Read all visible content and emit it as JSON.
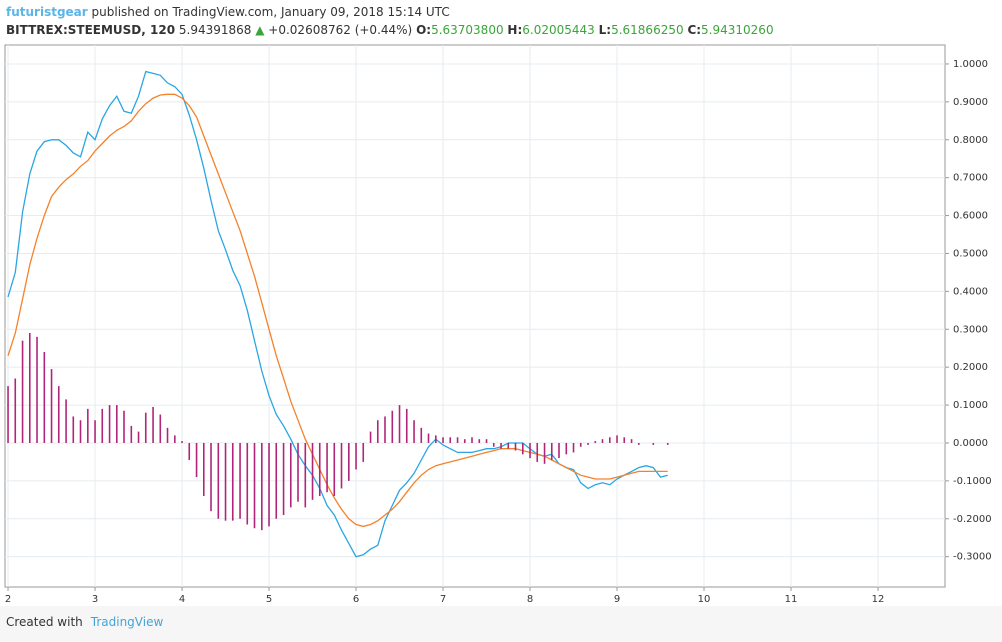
{
  "header": {
    "author": "futuristgear",
    "published": "published on TradingView.com, January 09, 2018 15:14 UTC",
    "symbol": "BITTREX:STEEMUSD, 120",
    "last": "5.94391868",
    "arrow": "▲",
    "change": "+0.02608762 (+0.44%)",
    "o_label": "O:",
    "open": "5.63703800",
    "h_label": "H:",
    "high": "6.02005443",
    "l_label": "L:",
    "low": "5.61866250",
    "c_label": "C:",
    "close": "5.94310260"
  },
  "footer": {
    "created": "Created with",
    "brand": "TradingView"
  },
  "chart_data": {
    "type": "macd",
    "grid": true,
    "x": [
      2,
      2.083,
      2.167,
      2.25,
      2.333,
      2.417,
      2.5,
      2.583,
      2.667,
      2.75,
      2.833,
      2.917,
      3,
      3.083,
      3.167,
      3.25,
      3.333,
      3.417,
      3.5,
      3.583,
      3.667,
      3.75,
      3.833,
      3.917,
      4,
      4.083,
      4.167,
      4.25,
      4.333,
      4.417,
      4.5,
      4.583,
      4.667,
      4.75,
      4.833,
      4.917,
      5,
      5.083,
      5.167,
      5.25,
      5.333,
      5.417,
      5.5,
      5.583,
      5.667,
      5.75,
      5.833,
      5.917,
      6,
      6.083,
      6.167,
      6.25,
      6.333,
      6.417,
      6.5,
      6.583,
      6.667,
      6.75,
      6.833,
      6.917,
      7,
      7.083,
      7.167,
      7.25,
      7.333,
      7.417,
      7.5,
      7.583,
      7.667,
      7.75,
      7.833,
      7.917,
      8,
      8.083,
      8.167,
      8.25,
      8.333,
      8.417,
      8.5,
      8.583,
      8.667,
      8.75,
      8.833,
      8.917,
      9,
      9.083,
      9.167,
      9.25,
      9.333,
      9.417,
      9.5,
      9.583
    ],
    "xlim": [
      1.965,
      12.77
    ],
    "xticks": [
      2,
      3,
      4,
      5,
      6,
      7,
      8,
      9,
      10,
      11,
      12
    ],
    "ylim": [
      -0.38,
      1.05
    ],
    "yticks": [
      {
        "value": 1.0,
        "label": "1.0000"
      },
      {
        "value": 0.9,
        "label": "0.9000"
      },
      {
        "value": 0.8,
        "label": "0.8000"
      },
      {
        "value": 0.7,
        "label": "0.7000"
      },
      {
        "value": 0.6,
        "label": "0.6000"
      },
      {
        "value": 0.5,
        "label": "0.5000"
      },
      {
        "value": 0.4,
        "label": "0.4000"
      },
      {
        "value": 0.3,
        "label": "0.3000"
      },
      {
        "value": 0.2,
        "label": "0.2000"
      },
      {
        "value": 0.1,
        "label": "0.1000"
      },
      {
        "value": 0,
        "label": "0.0000"
      },
      {
        "value": -0.1,
        "label": "-0.1000"
      },
      {
        "value": -0.2,
        "label": "-0.2000"
      },
      {
        "value": -0.3,
        "label": "-0.3000"
      }
    ],
    "series": [
      {
        "kind": "line",
        "color": "#29a6e2",
        "values": [
          0.385,
          0.45,
          0.61,
          0.71,
          0.77,
          0.795,
          0.8,
          0.8,
          0.785,
          0.765,
          0.755,
          0.82,
          0.8,
          0.855,
          0.89,
          0.915,
          0.875,
          0.87,
          0.915,
          0.98,
          0.975,
          0.97,
          0.95,
          0.94,
          0.92,
          0.865,
          0.8,
          0.725,
          0.64,
          0.56,
          0.51,
          0.455,
          0.415,
          0.35,
          0.27,
          0.19,
          0.125,
          0.075,
          0.045,
          0.01,
          -0.03,
          -0.06,
          -0.085,
          -0.12,
          -0.165,
          -0.19,
          -0.23,
          -0.265,
          -0.3,
          -0.295,
          -0.28,
          -0.27,
          -0.205,
          -0.165,
          -0.125,
          -0.105,
          -0.08,
          -0.045,
          -0.01,
          0.01,
          -0.005,
          -0.015,
          -0.025,
          -0.025,
          -0.025,
          -0.02,
          -0.015,
          -0.015,
          -0.01,
          0,
          0,
          0,
          -0.015,
          -0.03,
          -0.035,
          -0.03,
          -0.055,
          -0.065,
          -0.07,
          -0.105,
          -0.12,
          -0.11,
          -0.105,
          -0.11,
          -0.095,
          -0.085,
          -0.075,
          -0.065,
          -0.06,
          -0.065,
          -0.09,
          -0.085
        ]
      },
      {
        "kind": "line",
        "color": "#f5812a",
        "values": [
          0.23,
          0.29,
          0.38,
          0.47,
          0.54,
          0.6,
          0.65,
          0.675,
          0.695,
          0.71,
          0.73,
          0.745,
          0.77,
          0.79,
          0.81,
          0.825,
          0.835,
          0.85,
          0.875,
          0.895,
          0.91,
          0.918,
          0.92,
          0.92,
          0.91,
          0.89,
          0.86,
          0.81,
          0.76,
          0.71,
          0.66,
          0.61,
          0.56,
          0.5,
          0.44,
          0.37,
          0.3,
          0.23,
          0.17,
          0.11,
          0.06,
          0.01,
          -0.03,
          -0.07,
          -0.11,
          -0.145,
          -0.175,
          -0.2,
          -0.215,
          -0.22,
          -0.215,
          -0.205,
          -0.19,
          -0.175,
          -0.155,
          -0.13,
          -0.105,
          -0.085,
          -0.07,
          -0.06,
          -0.055,
          -0.05,
          -0.045,
          -0.04,
          -0.035,
          -0.03,
          -0.025,
          -0.02,
          -0.015,
          -0.015,
          -0.015,
          -0.02,
          -0.025,
          -0.03,
          -0.035,
          -0.045,
          -0.055,
          -0.065,
          -0.075,
          -0.085,
          -0.09,
          -0.095,
          -0.095,
          -0.095,
          -0.09,
          -0.085,
          -0.08,
          -0.075,
          -0.075,
          -0.075,
          -0.075,
          -0.075
        ]
      },
      {
        "kind": "histogram",
        "color": "#b0257a",
        "values": [
          0.15,
          0.17,
          0.27,
          0.29,
          0.28,
          0.24,
          0.195,
          0.15,
          0.115,
          0.07,
          0.06,
          0.09,
          0.06,
          0.09,
          0.1,
          0.1,
          0.085,
          0.045,
          0.03,
          0.08,
          0.095,
          0.075,
          0.04,
          0.02,
          0.005,
          -0.045,
          -0.09,
          -0.14,
          -0.18,
          -0.2,
          -0.205,
          -0.205,
          -0.2,
          -0.215,
          -0.225,
          -0.23,
          -0.22,
          -0.2,
          -0.19,
          -0.17,
          -0.155,
          -0.17,
          -0.15,
          -0.14,
          -0.13,
          -0.14,
          -0.12,
          -0.1,
          -0.07,
          -0.05,
          0.03,
          0.06,
          0.07,
          0.085,
          0.1,
          0.09,
          0.06,
          0.04,
          0.025,
          0.02,
          0.015,
          0.015,
          0.015,
          0.01,
          0.015,
          0.01,
          0.01,
          -0.01,
          -0.015,
          -0.015,
          -0.02,
          -0.03,
          -0.04,
          -0.05,
          -0.055,
          -0.045,
          -0.04,
          -0.03,
          -0.025,
          -0.01,
          -0.005,
          0.005,
          0.01,
          0.015,
          0.02,
          0.015,
          0.01,
          -0.005,
          0,
          -0.005,
          0,
          -0.005
        ]
      }
    ]
  }
}
